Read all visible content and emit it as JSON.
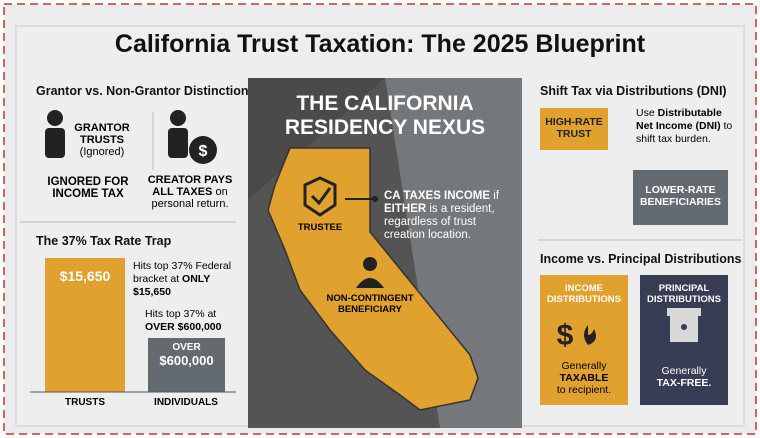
{
  "header": {
    "title": "California Trust Taxation: The 2025 Blueprint"
  },
  "grantor": {
    "heading": "Grantor vs. Non-Grantor Distinction",
    "left_label": "GRANTOR TRUSTS",
    "left_note": "(Ignored)",
    "left_caption": "IGNORED FOR INCOME TAX",
    "right_bold": "CREATOR PAYS ALL TAXES",
    "right_rest": "on personal return."
  },
  "trap": {
    "heading": "The 37% Tax Rate Trap",
    "trust_bar": "$15,650",
    "trust_note_lead": "Hits top 37% Federal bracket at",
    "trust_note_bold": "ONLY $15,650",
    "ind_note_lead": "Hits top 37% at",
    "ind_note_bold": "OVER $600,000",
    "ind_bar_top": "OVER",
    "ind_bar_value": "$600,000",
    "trust_label": "TRUSTS",
    "ind_label": "INDIVIDUALS"
  },
  "nexus": {
    "title": "THE CALIFORNIA RESIDENCY NEXUS",
    "trustee": "TRUSTEE",
    "beneficiary": "NON-CONTINGENT BENEFICIARY",
    "callout_bold1": "CA TAXES INCOME",
    "callout_t1": "if",
    "callout_bold2": "EITHER",
    "callout_t2": "is a resident, regardless of trust creation location."
  },
  "dni": {
    "heading": "Shift Tax via Distributions (DNI)",
    "high": "HIGH-RATE TRUST",
    "note_lead": "Use",
    "note_bold": "Distributable Net Income (DNI)",
    "note_rest": "to shift tax burden.",
    "low": "LOWER-RATE BENEFICIARIES"
  },
  "dist": {
    "heading": "Income vs. Principal Distributions",
    "income_title": "INCOME DISTRIBUTIONS",
    "income_symbol": "$",
    "income_lead": "Generally",
    "income_bold": "TAXABLE",
    "income_rest": "to recipient.",
    "principal_title": "PRINCIPAL DISTRIBUTIONS",
    "principal_lead": "Generally",
    "principal_bold": "TAX-FREE."
  }
}
